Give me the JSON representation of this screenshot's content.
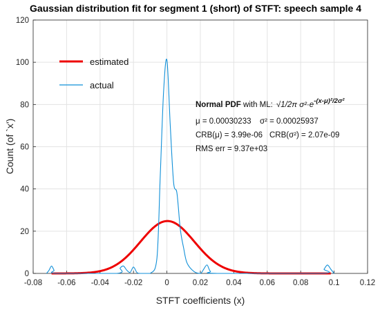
{
  "chart_data": {
    "type": "line",
    "title": "Gaussian distribution fit for segment 1 (short) of STFT: speech sample 4",
    "xlabel": "STFT coefficients (x)",
    "ylabel": "Count (of `x')",
    "xlim": [
      -0.08,
      0.12
    ],
    "ylim": [
      0,
      120
    ],
    "xticks": [
      "-0.08",
      "-0.06",
      "-0.04",
      "-0.02",
      "0",
      "0.02",
      "0.04",
      "0.06",
      "0.08",
      "0.1",
      "0.12"
    ],
    "yticks": [
      "0",
      "20",
      "40",
      "60",
      "80",
      "100",
      "120"
    ],
    "grid": true,
    "legend": {
      "placement": "top-left"
    },
    "series": [
      {
        "name": "estimated",
        "color": "#ee0000",
        "kind": "gaussian",
        "mu": 0.00030233,
        "sigma2": 0.00025937,
        "peak": 24.8,
        "x_range": [
          -0.069,
          0.098
        ]
      },
      {
        "name": "actual",
        "color": "#0f8fd8",
        "x": [
          -0.072,
          -0.0705,
          -0.069,
          -0.0675,
          -0.066,
          -0.03,
          -0.028,
          -0.026,
          -0.024,
          -0.022,
          -0.02,
          -0.018,
          -0.016,
          -0.01,
          -0.006,
          -0.004,
          -0.002,
          0.0,
          0.002,
          0.004,
          0.006,
          0.008,
          0.01,
          0.012,
          0.016,
          0.02,
          0.022,
          0.024,
          0.026,
          0.03,
          0.092,
          0.094,
          0.096,
          0.098,
          0.1
        ],
        "y": [
          0,
          1.5,
          3.5,
          1.5,
          0,
          0,
          2.5,
          3.5,
          1.5,
          0.5,
          3,
          0.5,
          0,
          0,
          7,
          46,
          86,
          101,
          70,
          43,
          38,
          21,
          12,
          5,
          1,
          0,
          2,
          4,
          1,
          0,
          0,
          2,
          4,
          2,
          0
        ]
      }
    ],
    "annotation": {
      "line1_bold": "Normal PDF",
      "line1_rest": " with ML:",
      "formula": "√1/2π σ²·e",
      "formula_exp": "-(x-μ)²/2σ²",
      "line2a": "μ = 0.00030233",
      "line2b": "σ² = 0.00025937",
      "line3a": "CRB(μ) = 3.99e-06",
      "line3b": "CRB(σ²) = 2.07e-09",
      "line4": "RMS err = 9.37e+03"
    }
  }
}
